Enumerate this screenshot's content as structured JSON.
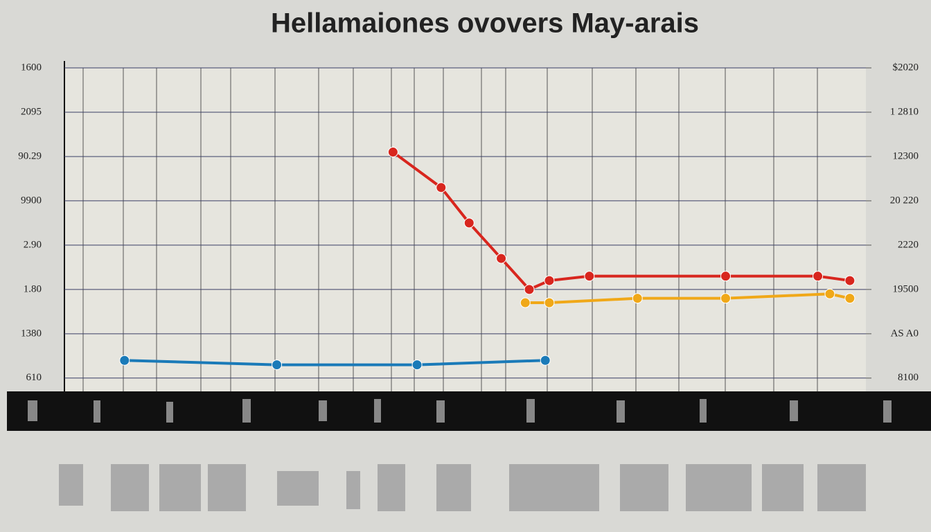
{
  "chart_data": {
    "type": "line",
    "title": "Hellamaiones ovovers May-arais",
    "xlim": [
      0,
      20
    ],
    "ylim": [
      -0.3,
      7
    ],
    "yticks": [
      {
        "value": 7,
        "label": "1600"
      },
      {
        "value": 6,
        "label": "2095"
      },
      {
        "value": 5,
        "label": "90.29"
      },
      {
        "value": 4,
        "label": "9900"
      },
      {
        "value": 3,
        "label": "2.90"
      },
      {
        "value": 2,
        "label": "1.80"
      },
      {
        "value": 1,
        "label": "1380"
      },
      {
        "value": 0,
        "label": "610"
      }
    ],
    "y2lim": [
      -0.3,
      7
    ],
    "y2ticks": [
      {
        "value": 7,
        "label": "$2020"
      },
      {
        "value": 6,
        "label": "1 2810"
      },
      {
        "value": 5,
        "label": "12300"
      },
      {
        "value": 4,
        "label": "20 220"
      },
      {
        "value": 3,
        "label": "2220"
      },
      {
        "value": 2,
        "label": "19500"
      },
      {
        "value": 1,
        "label": "AS A0"
      },
      {
        "value": 0,
        "label": "8100"
      }
    ],
    "grid": true,
    "series": [
      {
        "color": "#d8261e",
        "x": [
          8.2,
          9.4,
          10.1,
          10.9,
          11.6,
          12.1,
          13.1,
          16.5,
          18.8,
          19.6
        ],
        "values": [
          5.1,
          4.3,
          3.5,
          2.7,
          2.0,
          2.2,
          2.3,
          2.3,
          2.3,
          2.2
        ]
      },
      {
        "color": "#f0a818",
        "x": [
          11.5,
          12.1,
          14.3,
          16.5,
          19.1,
          19.6
        ],
        "values": [
          1.7,
          1.7,
          1.8,
          1.8,
          1.9,
          1.8
        ]
      },
      {
        "color": "#1a7ab8",
        "x": [
          1.5,
          5.3,
          8.8,
          12.0
        ],
        "values": [
          0.4,
          0.3,
          0.3,
          0.4
        ]
      }
    ]
  }
}
